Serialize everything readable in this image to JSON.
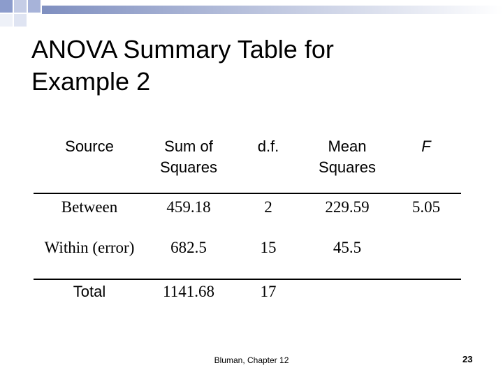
{
  "header": {
    "title": "ANOVA Summary Table for Example 2"
  },
  "table": {
    "columns": [
      "Source",
      "Sum of Squares",
      "d.f.",
      "Mean Squares",
      "F"
    ],
    "rows": [
      [
        "Between",
        459.18,
        2,
        229.59,
        5.05
      ],
      [
        "Within (error)",
        682.5,
        15,
        45.5
      ],
      [
        "Total",
        1141.68,
        17
      ]
    ]
  },
  "footer": {
    "source": "Bluman, Chapter 12",
    "page": "23"
  }
}
